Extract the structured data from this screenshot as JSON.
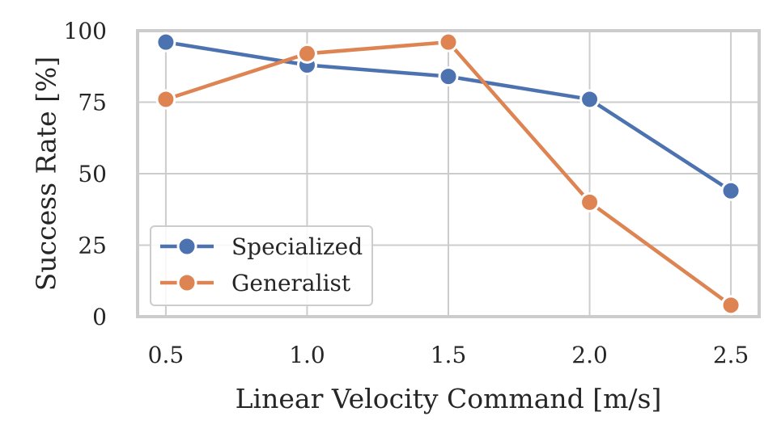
{
  "chart_data": {
    "type": "line",
    "title": "",
    "xlabel": "Linear Velocity Command [m/s]",
    "ylabel": "Success Rate [%]",
    "x": [
      0.5,
      1.0,
      1.5,
      2.0,
      2.5
    ],
    "x_ticks": [
      "0.5",
      "1.0",
      "1.5",
      "2.0",
      "2.5"
    ],
    "y_ticks": [
      "0",
      "25",
      "50",
      "75",
      "100"
    ],
    "xlim": [
      0.4,
      2.6
    ],
    "ylim": [
      0,
      100
    ],
    "grid": true,
    "legend_position": "bottom-left",
    "series": [
      {
        "name": "Specialized",
        "color": "#4c72b0",
        "marker": "circle",
        "values": [
          96,
          88,
          84,
          76,
          44
        ]
      },
      {
        "name": "Generalist",
        "color": "#dd8452",
        "marker": "circle",
        "values": [
          76,
          92,
          96,
          40,
          4
        ]
      }
    ]
  }
}
